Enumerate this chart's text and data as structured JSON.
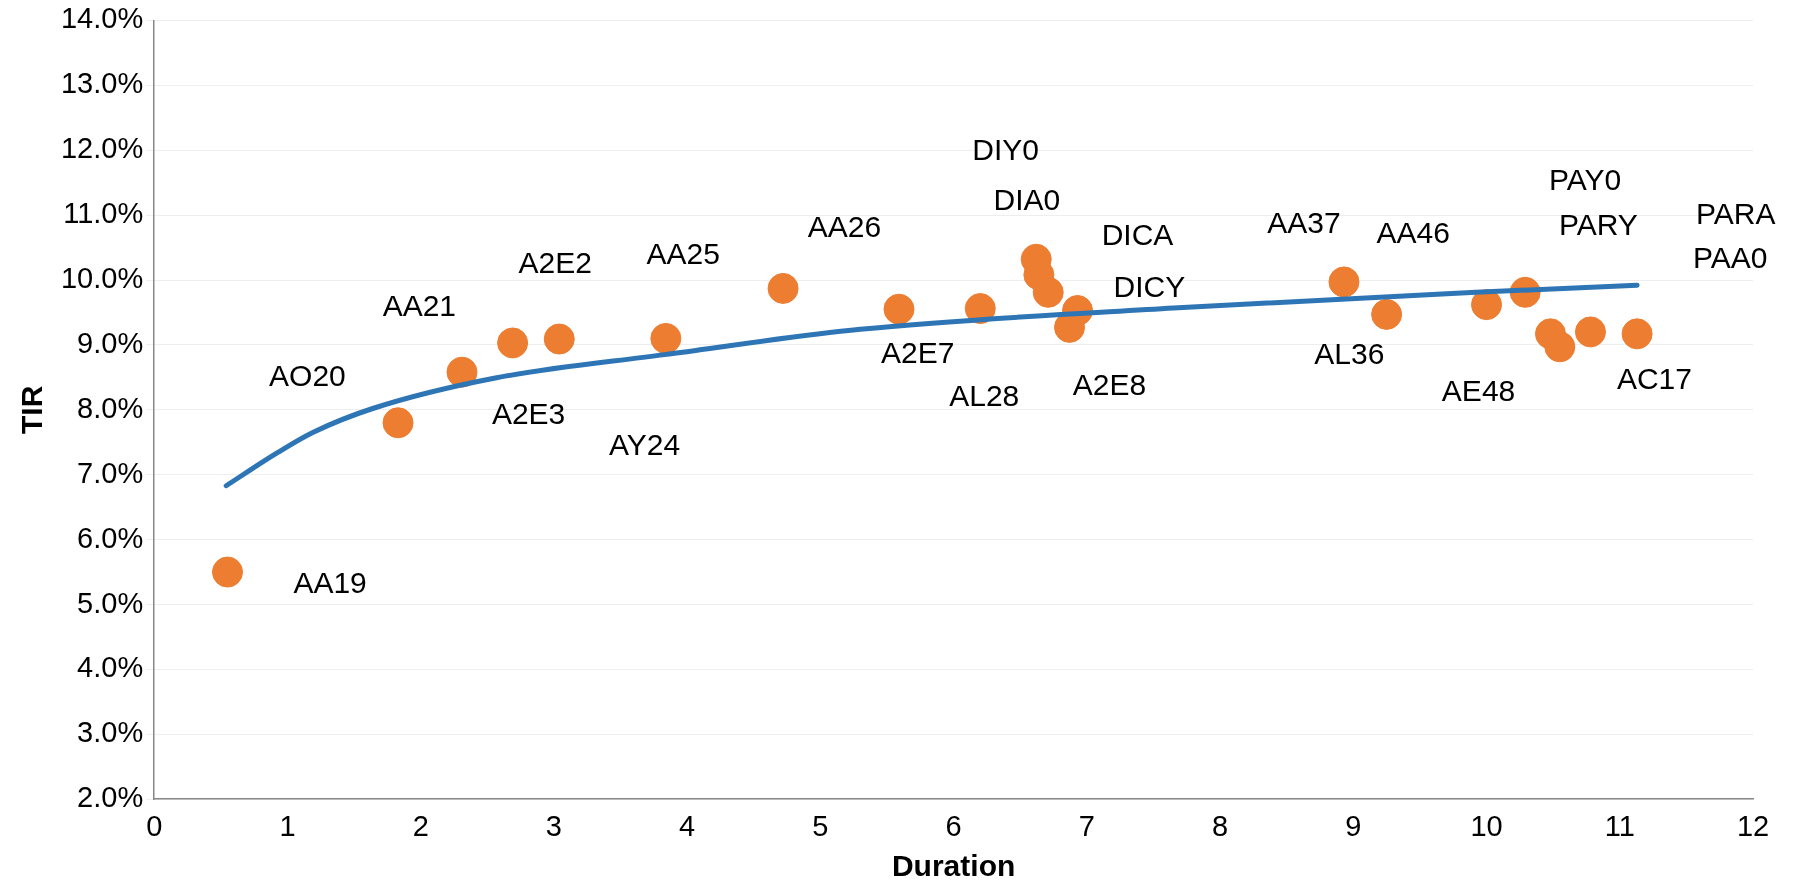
{
  "chart_data": {
    "type": "scatter",
    "xlabel": "Duration",
    "ylabel": "TIR",
    "xlim": [
      0,
      12
    ],
    "xticks": [
      0,
      1,
      2,
      3,
      4,
      5,
      6,
      7,
      8,
      9,
      10,
      11,
      12
    ],
    "ylim": [
      2,
      14
    ],
    "yticks": [
      {
        "value": 2,
        "label": "2.0%"
      },
      {
        "value": 3,
        "label": "3.0%"
      },
      {
        "value": 4,
        "label": "4.0%"
      },
      {
        "value": 5,
        "label": "5.0%"
      },
      {
        "value": 6,
        "label": "6.0%"
      },
      {
        "value": 7,
        "label": "7.0%"
      },
      {
        "value": 8,
        "label": "8.0%"
      },
      {
        "value": 9,
        "label": "9.0%"
      },
      {
        "value": 10,
        "label": "10.0%"
      },
      {
        "value": 11,
        "label": "11.0%"
      },
      {
        "value": 12,
        "label": "12.0%"
      },
      {
        "value": 13,
        "label": "13.0%"
      },
      {
        "value": 14,
        "label": "14.0%"
      }
    ],
    "grid": "y",
    "legend": false,
    "marker": "circle",
    "series": [
      {
        "color": "#ed7d31",
        "x": [
          0.55,
          1.83,
          2.31,
          2.69,
          3.04,
          3.84,
          4.72,
          5.59,
          6.2,
          6.62,
          6.64,
          6.71,
          6.93,
          6.87,
          8.93,
          9.25,
          10.0,
          10.29,
          10.48,
          10.55,
          10.78,
          11.13
        ],
        "values": [
          5.5,
          7.8,
          8.58,
          9.03,
          9.09,
          9.1,
          9.87,
          9.55,
          9.56,
          10.32,
          10.08,
          9.81,
          9.53,
          9.27,
          9.97,
          9.47,
          9.62,
          9.81,
          9.17,
          8.97,
          9.2,
          9.17
        ]
      },
      {
        "type": "line",
        "color": "#2e75b6",
        "marker": "none",
        "x": [
          0.54,
          0.91,
          1.19,
          1.64,
          2.56,
          3.83,
          5.3,
          7.65,
          9.92,
          11.13
        ],
        "values": [
          6.83,
          7.32,
          7.65,
          8.02,
          8.49,
          8.85,
          9.24,
          9.57,
          9.81,
          9.92
        ]
      }
    ],
    "annotations": [
      {
        "text": "AA19",
        "x": 0.55,
        "y": 5.5
      },
      {
        "text": "AO20",
        "x": 1.83,
        "y": 7.8
      },
      {
        "text": "AA21",
        "x": 2.31,
        "y": 8.58
      },
      {
        "text": "A2E2",
        "x": 3.04,
        "y": 9.09
      },
      {
        "text": "A2E3",
        "x": 2.69,
        "y": 9.03
      },
      {
        "text": "AY24",
        "x": 3.84,
        "y": 9.1
      },
      {
        "text": "AA25",
        "x": 3.84,
        "y": 9.1
      },
      {
        "text": "AA26",
        "x": 4.72,
        "y": 9.87
      },
      {
        "text": "A2E7",
        "x": 5.59,
        "y": 9.55
      },
      {
        "text": "AL28",
        "x": 6.2,
        "y": 9.56
      },
      "DIY0",
      {
        "text": "DIA0",
        "x": 6.64,
        "y": 10.08
      },
      {
        "text": "DICA",
        "x": 6.71,
        "y": 9.81
      },
      {
        "text": "DICY",
        "x": 6.93,
        "y": 9.53
      },
      {
        "text": "A2E8",
        "x": 6.87,
        "y": 9.27
      },
      {
        "text": "AA37",
        "x": 8.93,
        "y": 9.97
      },
      {
        "text": "AA46",
        "x": 9.25,
        "y": 9.47
      },
      {
        "text": "AL36",
        "x": 9.25,
        "y": 9.47
      },
      {
        "text": "AE48",
        "x": 10.0,
        "y": 9.62
      },
      "PAY0",
      "PARY",
      "PARA",
      "PAA0",
      {
        "text": "AC17",
        "x": 11.13,
        "y": 9.17
      }
    ]
  }
}
